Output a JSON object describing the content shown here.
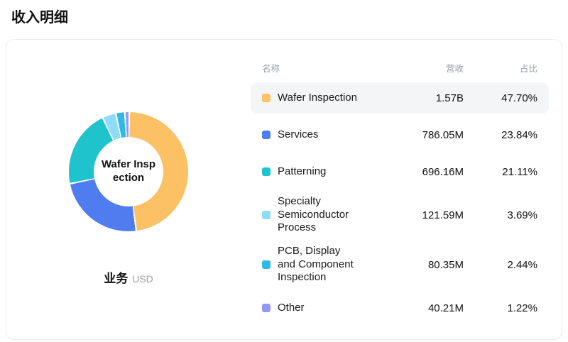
{
  "page": {
    "title": "收入明细"
  },
  "chart": {
    "center_label": "Wafer Insp\nection",
    "footer_label": "业务",
    "footer_unit": "USD"
  },
  "table": {
    "headers": {
      "name": "名称",
      "revenue": "营收",
      "share": "占比"
    }
  },
  "chart_data": {
    "type": "pie",
    "title": "收入明细",
    "legend_position": "right-table",
    "unit": "USD",
    "series": [
      {
        "name": "Wafer Inspection",
        "revenue": "1.57B",
        "value": 47.7,
        "share": "47.70%",
        "color": "#FBC164",
        "highlighted": true
      },
      {
        "name": "Services",
        "revenue": "786.05M",
        "value": 23.84,
        "share": "23.84%",
        "color": "#4F7CEE",
        "highlighted": false
      },
      {
        "name": "Patterning",
        "revenue": "696.16M",
        "value": 21.11,
        "share": "21.11%",
        "color": "#1EC3CC",
        "highlighted": false
      },
      {
        "name": "Specialty Semiconductor Process",
        "revenue": "121.59M",
        "value": 3.69,
        "share": "3.69%",
        "color": "#90DCF8",
        "highlighted": false
      },
      {
        "name": "PCB, Display and Component Inspection",
        "revenue": "80.35M",
        "value": 2.44,
        "share": "2.44%",
        "color": "#2FB9E9",
        "highlighted": false
      },
      {
        "name": "Other",
        "revenue": "40.21M",
        "value": 1.22,
        "share": "1.22%",
        "color": "#9398F1",
        "highlighted": false
      }
    ]
  }
}
